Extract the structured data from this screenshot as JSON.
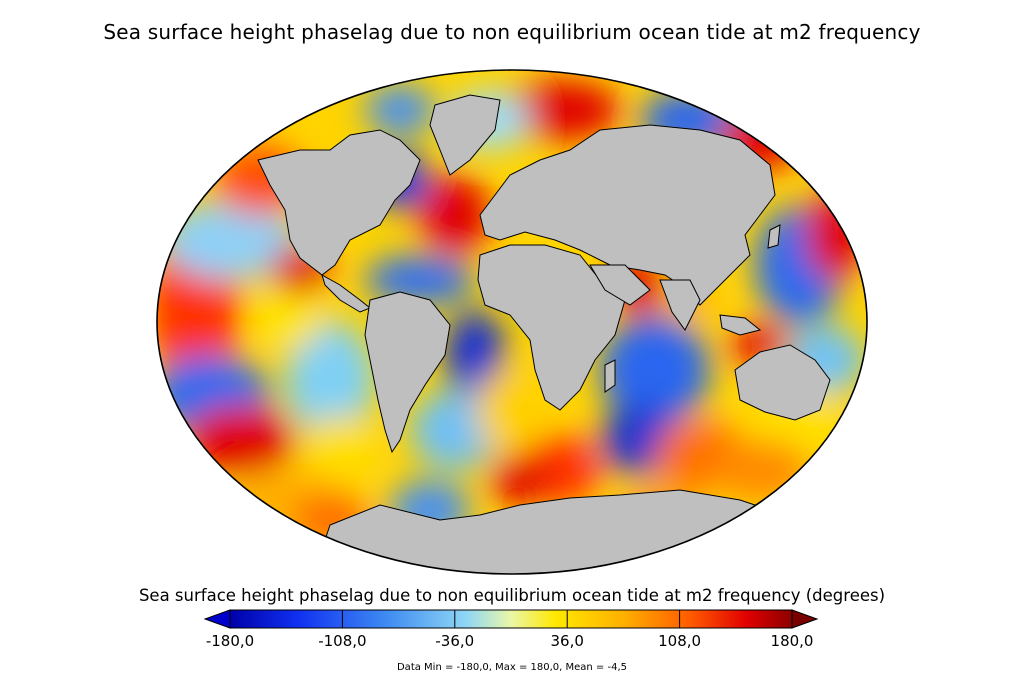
{
  "title": "Sea surface height phaselag due to non equilibrium ocean tide at m2 frequency",
  "colorbar": {
    "label": "Sea surface height phaselag due to non equilibrium ocean tide at m2 frequency (degrees)",
    "min": -180,
    "max": 180,
    "ticks": [
      "-180,0",
      "-108,0",
      "-36,0",
      "36,0",
      "108,0",
      "180,0"
    ],
    "tick_values": [
      -180,
      -108,
      -36,
      36,
      108,
      180
    ],
    "colors": [
      "#0000aa",
      "#1030f0",
      "#3f8cf2",
      "#8fd6f5",
      "#eaf7a8",
      "#ffe800",
      "#ffb000",
      "#ff5a00",
      "#e00000",
      "#8b0000"
    ],
    "extend_low_color": "#0000cc",
    "extend_high_color": "#7a0000"
  },
  "stats": "Data Min = -180,0, Max = 180,0, Mean = -4,5",
  "map": {
    "projection": "robinson-like ellipse",
    "land_color": "#bfbfbf"
  }
}
